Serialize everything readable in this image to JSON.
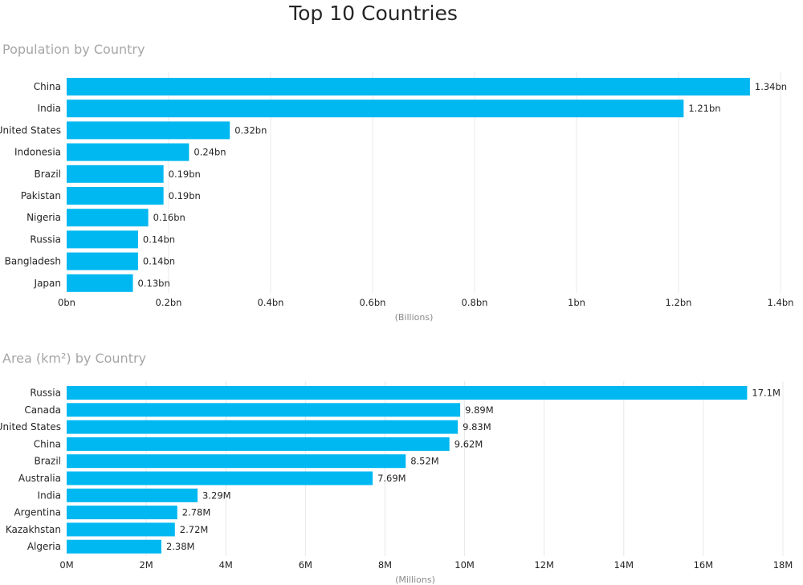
{
  "page_title": "Top 10 Countries",
  "colors": {
    "bar": "#00b8f1"
  },
  "chart_data": [
    {
      "id": "population",
      "type": "bar",
      "orientation": "horizontal",
      "title": "Population by Country",
      "categories": [
        "China",
        "India",
        "United States",
        "Indonesia",
        "Brazil",
        "Pakistan",
        "Nigeria",
        "Russia",
        "Bangladesh",
        "Japan"
      ],
      "values": [
        1.34,
        1.21,
        0.32,
        0.24,
        0.19,
        0.19,
        0.16,
        0.14,
        0.14,
        0.13
      ],
      "value_labels": [
        "1.34bn",
        "1.21bn",
        "0.32bn",
        "0.24bn",
        "0.19bn",
        "0.19bn",
        "0.16bn",
        "0.14bn",
        "0.14bn",
        "0.13bn"
      ],
      "xlim": [
        0,
        1.4
      ],
      "x_ticks": [
        0,
        0.2,
        0.4,
        0.6,
        0.8,
        1,
        1.2,
        1.4
      ],
      "x_tick_labels": [
        "0bn",
        "0.2bn",
        "0.4bn",
        "0.6bn",
        "0.8bn",
        "1bn",
        "1.2bn",
        "1.4bn"
      ],
      "xlabel": "(Billions)",
      "grid": true
    },
    {
      "id": "area",
      "type": "bar",
      "orientation": "horizontal",
      "title": "Area (km²) by Country",
      "categories": [
        "Russia",
        "Canada",
        "United States",
        "China",
        "Brazil",
        "Australia",
        "India",
        "Argentina",
        "Kazakhstan",
        "Algeria"
      ],
      "values": [
        17.1,
        9.89,
        9.83,
        9.62,
        8.52,
        7.69,
        3.29,
        2.78,
        2.72,
        2.38
      ],
      "value_labels": [
        "17.1M",
        "9.89M",
        "9.83M",
        "9.62M",
        "8.52M",
        "7.69M",
        "3.29M",
        "2.78M",
        "2.72M",
        "2.38M"
      ],
      "xlim": [
        0,
        18
      ],
      "x_ticks": [
        0,
        2,
        4,
        6,
        8,
        10,
        12,
        14,
        16,
        18
      ],
      "x_tick_labels": [
        "0M",
        "2M",
        "4M",
        "6M",
        "8M",
        "10M",
        "12M",
        "14M",
        "16M",
        "18M"
      ],
      "xlabel": "(Millions)",
      "grid": true
    }
  ]
}
